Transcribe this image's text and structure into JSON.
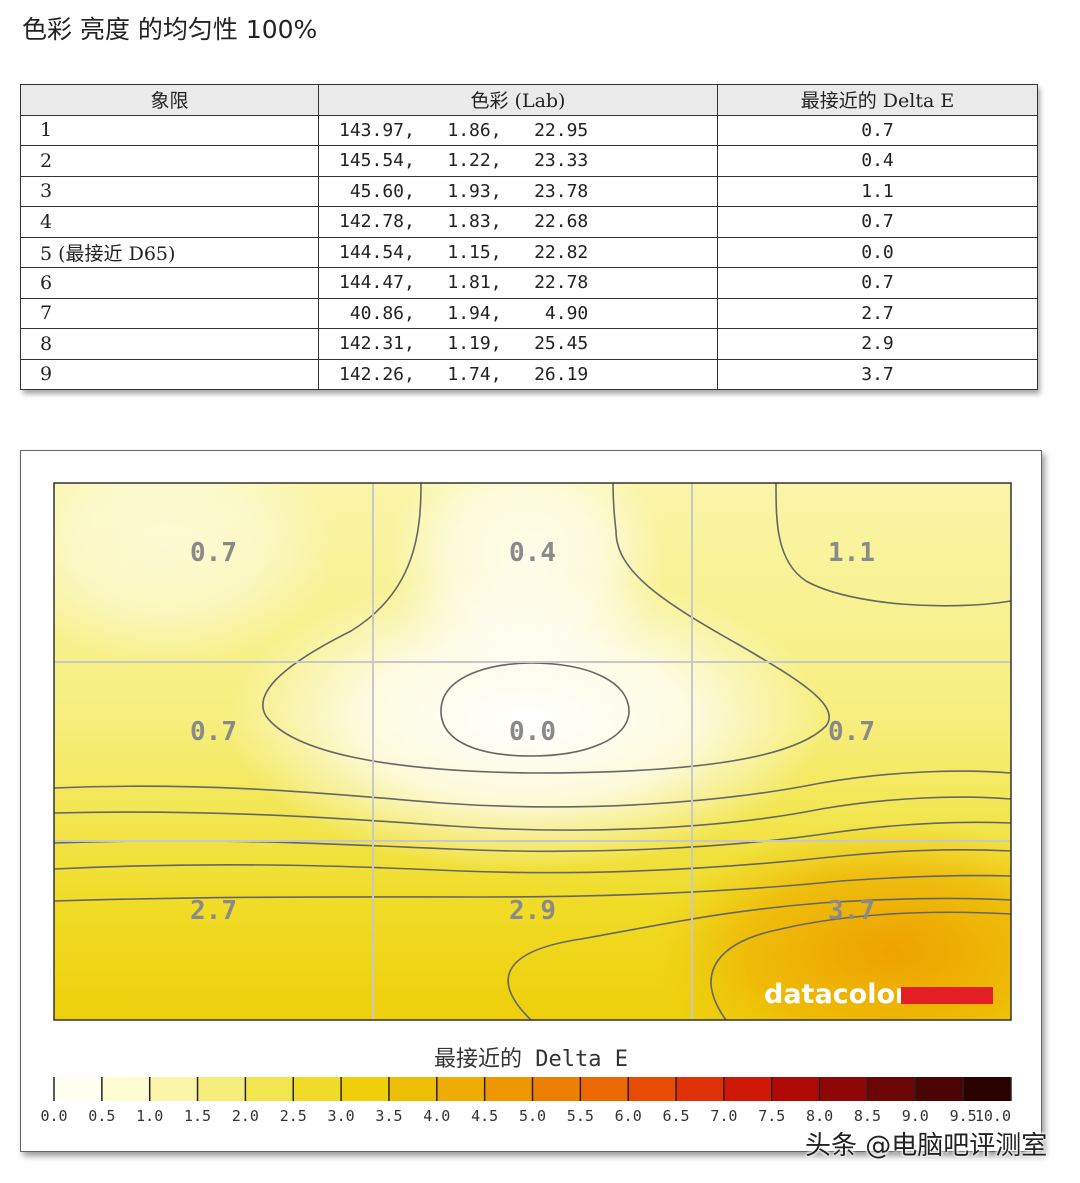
{
  "page_title": "色彩 亮度 的均匀性 100%",
  "table": {
    "headers": [
      "象限",
      "色彩 (Lab)",
      "最接近的 Delta E"
    ],
    "rows": [
      {
        "q": "1",
        "lab": "143.97,   1.86,   22.95",
        "de": "0.7"
      },
      {
        "q": "2",
        "lab": "145.54,   1.22,   23.33",
        "de": "0.4"
      },
      {
        "q": "3",
        "lab": " 45.60,   1.93,   23.78",
        "de": "1.1"
      },
      {
        "q": "4",
        "lab": "142.78,   1.83,   22.68",
        "de": "0.7"
      },
      {
        "q": "5 (最接近 D65)",
        "lab": "144.54,   1.15,   22.82",
        "de": "0.0"
      },
      {
        "q": "6",
        "lab": "144.47,   1.81,   22.78",
        "de": "0.7"
      },
      {
        "q": "7",
        "lab": " 40.86,   1.94,    4.90",
        "de": "2.7"
      },
      {
        "q": "8",
        "lab": "142.31,   1.19,   25.45",
        "de": "2.9"
      },
      {
        "q": "9",
        "lab": "142.26,   1.74,   26.19",
        "de": "3.7"
      }
    ]
  },
  "chart_data": {
    "type": "heatmap",
    "grid": [
      3,
      3
    ],
    "values": [
      [
        0.7,
        0.4,
        1.1
      ],
      [
        0.7,
        0.0,
        0.7
      ],
      [
        2.7,
        2.9,
        3.7
      ]
    ],
    "value_labels": [
      "0.7",
      "0.4",
      "1.1",
      "0.7",
      "0.0",
      "0.7",
      "2.7",
      "2.9",
      "3.7"
    ],
    "legend_title": "最接近的 Delta E",
    "scale_ticks": [
      "0.0",
      "0.5",
      "1.0",
      "1.5",
      "2.0",
      "2.5",
      "3.0",
      "3.5",
      "4.0",
      "4.5",
      "5.0",
      "5.5",
      "6.0",
      "6.5",
      "7.0",
      "7.5",
      "8.0",
      "8.5",
      "9.0",
      "9.5",
      "10.0"
    ],
    "scale_colors": [
      "#fffff0",
      "#fdfcd2",
      "#faf5a8",
      "#f6ee7c",
      "#f2e650",
      "#f0dc28",
      "#eecf0a",
      "#edbf04",
      "#eeac04",
      "#ee9703",
      "#ed8003",
      "#eb6803",
      "#e84c04",
      "#e03005",
      "#d01806",
      "#b00a07",
      "#8e0606",
      "#6c0505",
      "#4a0404",
      "#2a0202"
    ],
    "grid_lines": true
  },
  "logo": {
    "text": "datacolor",
    "bar_color": "#e31e24"
  },
  "watermark": "头条 @电脑吧评测室"
}
